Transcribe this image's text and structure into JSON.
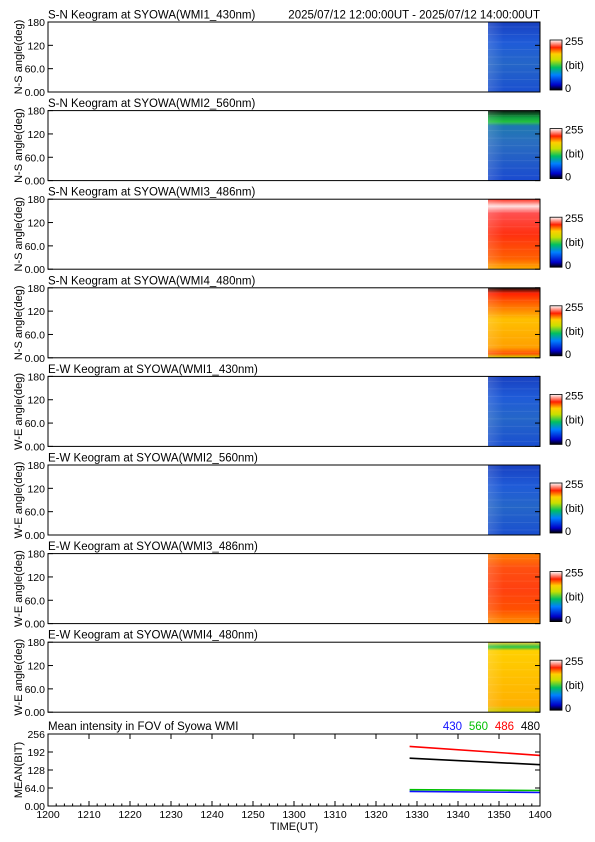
{
  "header": {
    "time_range": "2025/07/12 12:00:00UT - 2025/07/12 14:00:00UT"
  },
  "keograms": [
    {
      "title": "S-N Keogram at SYOWA(WMI1_430nm)",
      "ylabel": "N-S angle(deg)",
      "palette": "blue-low"
    },
    {
      "title": "S-N Keogram at SYOWA(WMI2_560nm)",
      "ylabel": "N-S angle(deg)",
      "palette": "blue-greenband"
    },
    {
      "title": "S-N Keogram at SYOWA(WMI3_486nm)",
      "ylabel": "N-S angle(deg)",
      "palette": "red-gradient"
    },
    {
      "title": "S-N Keogram at SYOWA(WMI4_480nm)",
      "ylabel": "N-S angle(deg)",
      "palette": "orange-gradient"
    },
    {
      "title": "E-W Keogram at SYOWA(WMI1_430nm)",
      "ylabel": "W-E angle(deg)",
      "palette": "blue-low"
    },
    {
      "title": "E-W Keogram at SYOWA(WMI2_560nm)",
      "ylabel": "W-E angle(deg)",
      "palette": "blue-low"
    },
    {
      "title": "E-W Keogram at SYOWA(WMI3_486nm)",
      "ylabel": "W-E angle(deg)",
      "palette": "red-uniform"
    },
    {
      "title": "E-W Keogram at SYOWA(WMI4_480nm)",
      "ylabel": "W-E angle(deg)",
      "palette": "orange-greenband"
    }
  ],
  "keogram_yticks": [
    "180",
    "120",
    "60.0",
    "0.00"
  ],
  "colorbar": {
    "max": "255",
    "unit": "(bit)",
    "min": "0"
  },
  "chart_data": {
    "type": "line",
    "title": "Mean intensity in FOV of Syowa WMI",
    "xlabel": "TIME(UT)",
    "ylabel": "MEAN(BIT)",
    "xlim": [
      1200,
      1400
    ],
    "ylim": [
      0,
      256
    ],
    "xticks": [
      "1200",
      "1210",
      "1220",
      "1230",
      "1240",
      "1250",
      "1300",
      "1310",
      "1320",
      "1330",
      "1340",
      "1350",
      "1400"
    ],
    "yticks": [
      "256",
      "192",
      "128",
      "64.0",
      "0.00"
    ],
    "legend_position": "top-right",
    "series": [
      {
        "name": "430",
        "color": "#1010ff",
        "points": [
          [
            1347,
            52
          ],
          [
            1400,
            48
          ]
        ]
      },
      {
        "name": "560",
        "color": "#00c000",
        "points": [
          [
            1347,
            58
          ],
          [
            1400,
            55
          ]
        ]
      },
      {
        "name": "486",
        "color": "#ff0000",
        "points": [
          [
            1347,
            212
          ],
          [
            1400,
            180
          ]
        ]
      },
      {
        "name": "480",
        "color": "#000000",
        "points": [
          [
            1347,
            170
          ],
          [
            1400,
            147
          ]
        ]
      }
    ]
  }
}
